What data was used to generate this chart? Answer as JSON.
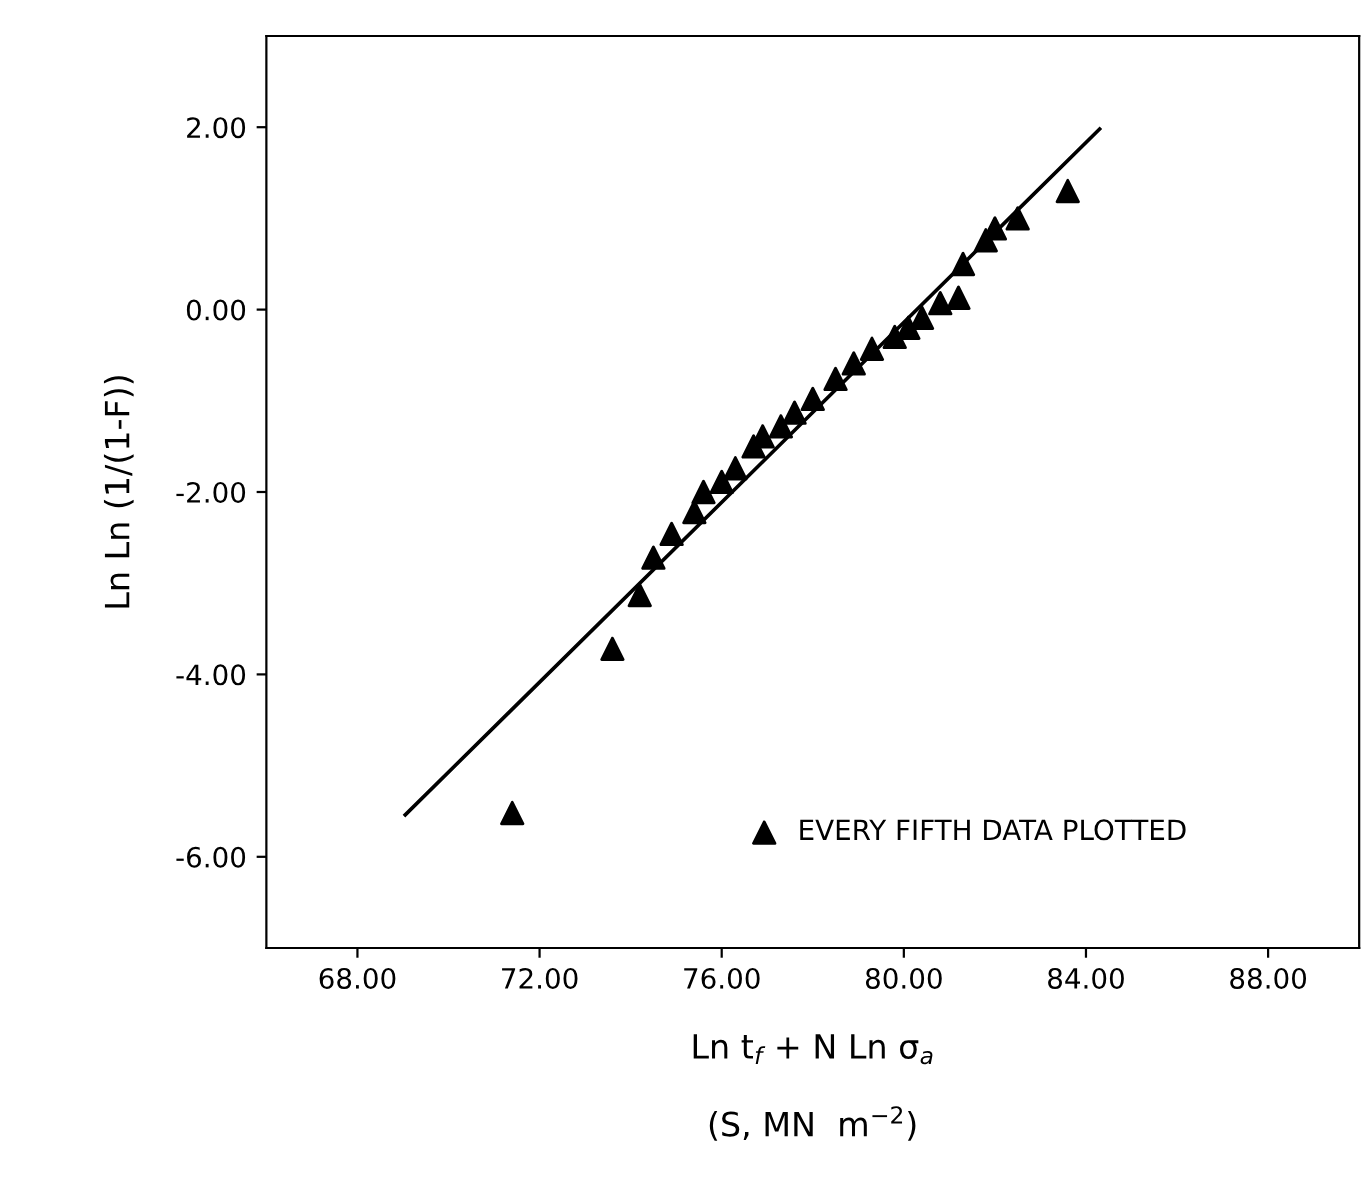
{
  "chart_data": {
    "type": "scatter",
    "xlabel": "Ln t$_{f}$ + N Ln σ$_{a}$\n\n(S, MN  m$^{−2}$)",
    "ylabel": "Ln Ln (1/(1-F))",
    "xlim": [
      66,
      90
    ],
    "ylim": [
      -7,
      3
    ],
    "xticks": [
      {
        "value": 68,
        "label": "68.00"
      },
      {
        "value": 72,
        "label": "72.00"
      },
      {
        "value": 76,
        "label": "76.00"
      },
      {
        "value": 80,
        "label": "80.00"
      },
      {
        "value": 84,
        "label": "84.00"
      },
      {
        "value": 88,
        "label": "88.00"
      }
    ],
    "yticks": [
      {
        "value": 2,
        "label": "2.00"
      },
      {
        "value": 0,
        "label": "0.00"
      },
      {
        "value": -2,
        "label": "-2.00"
      },
      {
        "value": -4,
        "label": "-4.00"
      },
      {
        "value": -6,
        "label": "-6.00"
      }
    ],
    "grid": false,
    "legend": "bottom right",
    "marker": "triangle",
    "series": [
      {
        "name": "EVERY FIFTH DATA PLOTTED",
        "color": "#000000",
        "x": [
          71.4,
          73.6,
          74.2,
          74.5,
          74.9,
          75.4,
          75.6,
          76.0,
          76.3,
          76.7,
          76.9,
          77.3,
          77.6,
          78.0,
          78.5,
          78.9,
          79.3,
          79.8,
          80.1,
          80.4,
          80.8,
          81.2,
          81.3,
          81.8,
          82.0,
          82.5,
          83.6
        ],
        "values": [
          -5.52,
          -3.72,
          -3.13,
          -2.72,
          -2.46,
          -2.22,
          -2.0,
          -1.89,
          -1.74,
          -1.5,
          -1.39,
          -1.28,
          -1.13,
          -0.98,
          -0.76,
          -0.59,
          -0.43,
          -0.3,
          -0.2,
          -0.09,
          0.07,
          0.13,
          0.5,
          0.76,
          0.89,
          1.0,
          1.3
        ]
      },
      {
        "type": "line",
        "color": "#000000",
        "marker": "none",
        "line_style": "solid",
        "x": [
          69.05,
          84.3
        ],
        "values": [
          -5.54,
          1.98
        ]
      }
    ]
  }
}
